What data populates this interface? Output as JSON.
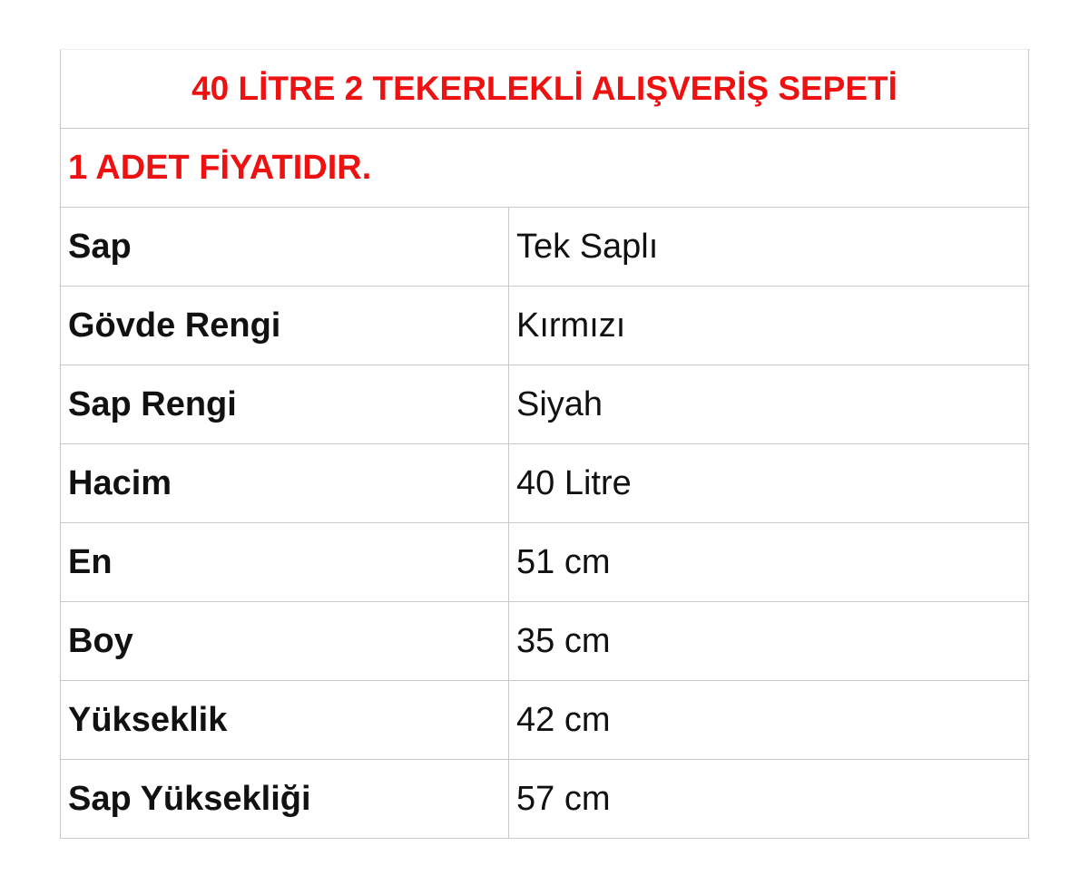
{
  "title": "40 LİTRE 2 TEKERLEKLİ ALIŞVERİŞ SEPETİ",
  "note": "1 ADET FİYATIDIR.",
  "accent_color": "#ee1111",
  "rows": [
    {
      "label": "Sap",
      "value": "Tek Saplı"
    },
    {
      "label": "Gövde Rengi",
      "value": "Kırmızı"
    },
    {
      "label": "Sap Rengi",
      "value": "Siyah"
    },
    {
      "label": "Hacim",
      "value": "40 Litre"
    },
    {
      "label": "En",
      "value": "51 cm"
    },
    {
      "label": "Boy",
      "value": "35 cm"
    },
    {
      "label": "Yükseklik",
      "value": "42 cm"
    },
    {
      "label": "Sap Yüksekliği",
      "value": "57 cm"
    }
  ]
}
